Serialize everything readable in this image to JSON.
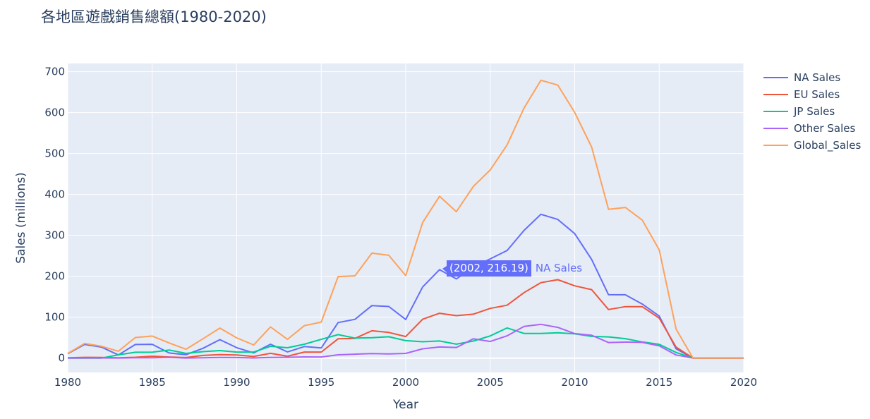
{
  "title": "各地區遊戲銷售總額(1980-2020)",
  "chart_data": {
    "type": "line",
    "title": "各地區遊戲銷售總額(1980-2020)",
    "xlabel": "Year",
    "ylabel": "Sales (millions)",
    "xlim": [
      1980,
      2020
    ],
    "ylim": [
      -35,
      720
    ],
    "xticks": [
      1980,
      1985,
      1990,
      1995,
      2000,
      2005,
      2010,
      2015,
      2020
    ],
    "yticks": [
      0,
      100,
      200,
      300,
      400,
      500,
      600,
      700
    ],
    "grid": true,
    "legend_position": "right",
    "x": [
      1980,
      1981,
      1982,
      1983,
      1984,
      1985,
      1986,
      1987,
      1988,
      1989,
      1990,
      1991,
      1992,
      1993,
      1994,
      1995,
      1996,
      1997,
      1998,
      1999,
      2000,
      2001,
      2002,
      2003,
      2004,
      2005,
      2006,
      2007,
      2008,
      2009,
      2010,
      2011,
      2012,
      2013,
      2014,
      2015,
      2016,
      2017,
      2018,
      2019,
      2020
    ],
    "series": [
      {
        "name": "NA Sales",
        "color": "#636efa",
        "values": [
          10.6,
          33.4,
          26.9,
          7.8,
          33.3,
          33.7,
          12.5,
          8.5,
          23.9,
          45.2,
          25.5,
          12.8,
          33.9,
          15.1,
          28.2,
          24.8,
          86.8,
          94.8,
          128.4,
          126.1,
          94.5,
          173.9,
          216.19,
          193.6,
          222.4,
          242.6,
          263.1,
          312.1,
          351.4,
          338.9,
          304.2,
          241.2,
          154.9,
          154.8,
          131.97,
          102.8,
          22.7,
          0,
          0,
          0,
          0
        ]
      },
      {
        "name": "EU Sales",
        "color": "#ef553b",
        "values": [
          0.7,
          1.9,
          1.7,
          0.8,
          2.1,
          4.7,
          2.8,
          1.4,
          6.6,
          8.4,
          7.6,
          3.9,
          11.7,
          4.7,
          14.9,
          14.9,
          47.3,
          48.3,
          66.9,
          62.7,
          52.8,
          94.9,
          109.7,
          103.8,
          107.3,
          121.6,
          129.2,
          160.2,
          184.4,
          191.6,
          176.6,
          167.4,
          118.8,
          125.8,
          125.7,
          97.7,
          26.8,
          0,
          0,
          0,
          0
        ]
      },
      {
        "name": "JP Sales",
        "color": "#00cc96",
        "values": [
          0,
          0,
          0,
          8.1,
          14.3,
          14.6,
          19.8,
          11.6,
          15.8,
          18.4,
          14.9,
          14.8,
          28.9,
          25.3,
          33.9,
          45.8,
          57.4,
          48.9,
          50.0,
          52.3,
          42.8,
          39.9,
          41.8,
          34.2,
          41.7,
          54.3,
          73.7,
          60.3,
          60.3,
          61.9,
          59.5,
          53.0,
          51.8,
          47.6,
          39.5,
          33.7,
          13.7,
          0,
          0,
          0,
          0
        ]
      },
      {
        "name": "Other Sales",
        "color": "#ab63fa",
        "values": [
          0.1,
          0.3,
          0.3,
          0.1,
          0.7,
          0.9,
          1.9,
          0.2,
          0.9,
          1.5,
          1.4,
          0.4,
          1.7,
          2.0,
          2.9,
          2.7,
          8.1,
          9.6,
          11.1,
          10.1,
          11.6,
          22.8,
          27.3,
          26.0,
          47.3,
          40.6,
          54.4,
          77.6,
          82.5,
          75.1,
          59.9,
          55.8,
          38.1,
          39.1,
          38.5,
          30.0,
          7.7,
          0,
          0,
          0,
          0
        ]
      },
      {
        "name": "Global_Sales",
        "color": "#ffa15a",
        "values": [
          11.4,
          35.8,
          28.9,
          16.8,
          50.4,
          53.9,
          37.1,
          21.7,
          47.2,
          73.5,
          49.4,
          32.2,
          76.2,
          45.9,
          79.2,
          88.1,
          199.2,
          201.1,
          256.5,
          251.3,
          201.6,
          331.5,
          395.5,
          357.8,
          419.3,
          459.9,
          521.0,
          611.1,
          678.9,
          667.3,
          600.3,
          515.8,
          363.5,
          368.1,
          337.1,
          264.4,
          70.9,
          0,
          0,
          0,
          0
        ]
      }
    ],
    "hover": {
      "series": "NA Sales",
      "x": 2002,
      "y": 216.19,
      "text": "(2002, 216.19)",
      "series_label": "NA Sales"
    }
  },
  "colors": {
    "plot_bg": "#e5ecf6",
    "grid": "#ffffff",
    "text": "#2a3f5f"
  }
}
